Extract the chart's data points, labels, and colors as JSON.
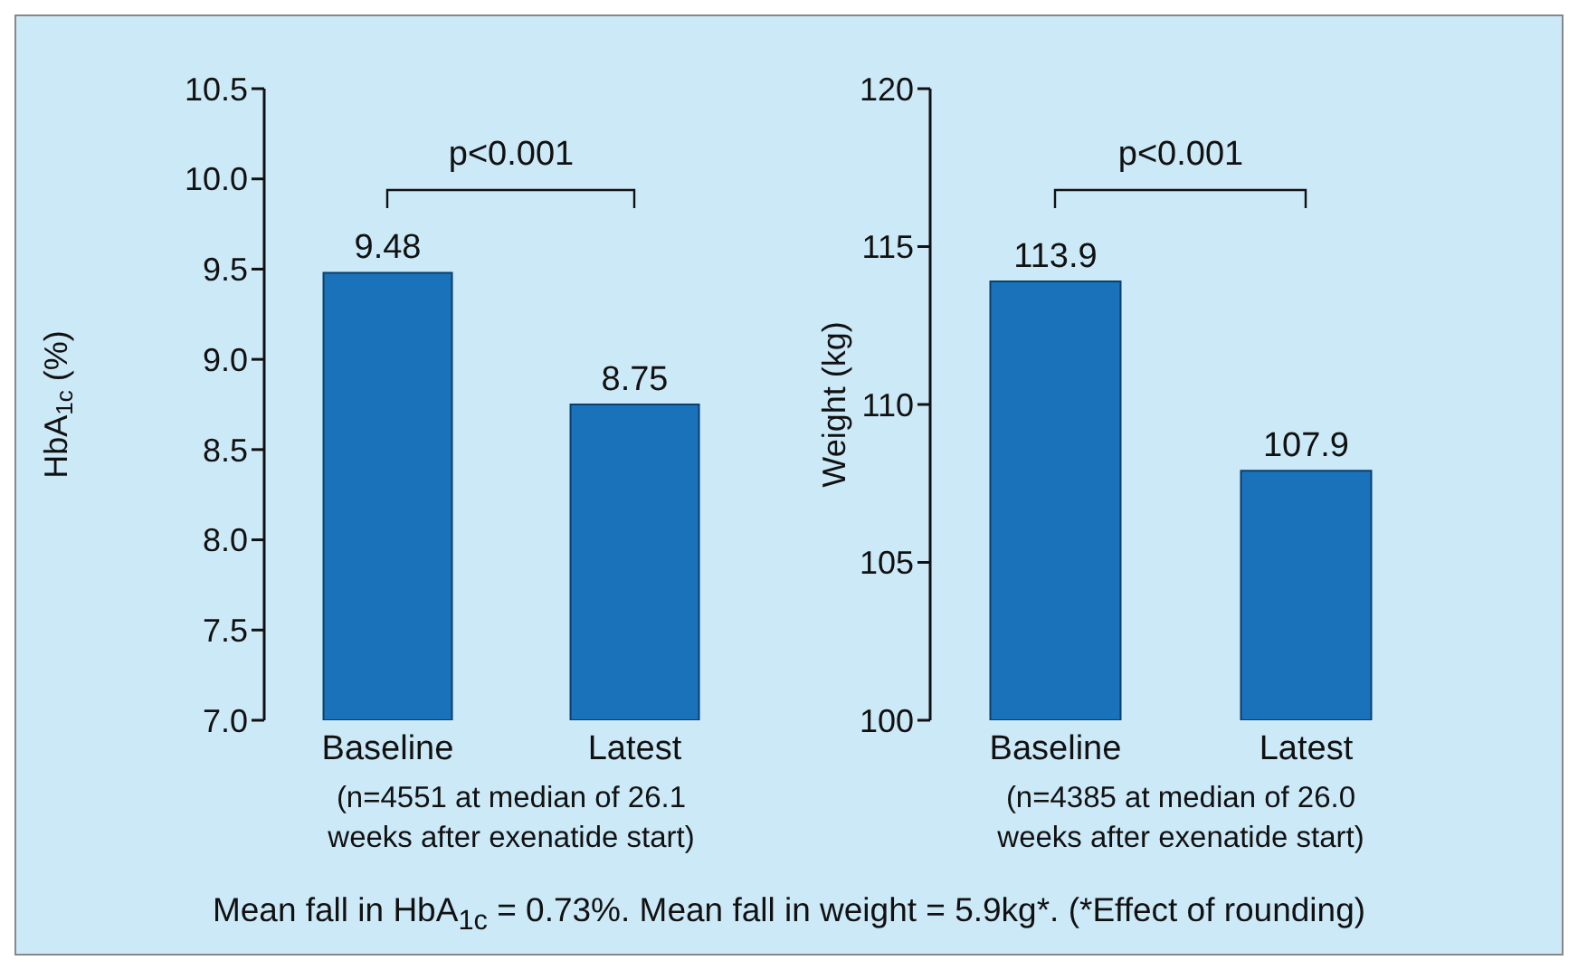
{
  "chart_data": [
    {
      "type": "bar",
      "categories": [
        "Baseline",
        "Latest"
      ],
      "values": [
        9.48,
        8.75
      ],
      "color": "#1a72bb",
      "data_labels": true,
      "ylabel": "HbA$_{1c}$ (%)",
      "xlabel": "(n=4551 at median of 26.1 weeks after exenatide start)",
      "ylim": [
        7.0,
        10.5
      ],
      "yticks": [
        {
          "value": 7,
          "label": "7.0"
        },
        7.5,
        {
          "value": 8,
          "label": "8.0"
        },
        8.5,
        {
          "value": 9,
          "label": "9.0"
        },
        9.5,
        {
          "value": 10,
          "label": "10.0"
        },
        10.5
      ],
      "annotations": [
        "p<0.001",
        "Mean fall in HbA$_{1c}$ = 0.73%. Mean fall in weight = 5.9kg*. (*Effect of rounding)"
      ]
    },
    {
      "type": "bar",
      "categories": [
        "Baseline",
        "Latest"
      ],
      "values": [
        113.9,
        107.9
      ],
      "color": "#1a72bb",
      "data_labels": true,
      "ylabel": "Weight (kg)",
      "xlabel": "(n=4385 at median of 26.0 weeks after exenatide start)",
      "ylim": [
        100,
        120
      ],
      "yticks": [
        100,
        105,
        110,
        115,
        120
      ],
      "annotations": [
        "p<0.001"
      ]
    }
  ]
}
